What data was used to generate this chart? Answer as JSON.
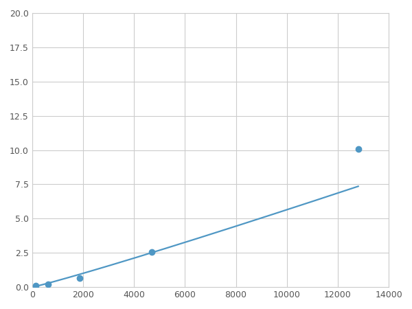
{
  "x": [
    156,
    625,
    1875,
    4688,
    12800
  ],
  "y": [
    0.1,
    0.2,
    0.65,
    2.55,
    10.1
  ],
  "line_color": "#4f97c4",
  "marker_color": "#4f97c4",
  "marker_size": 6,
  "xlim": [
    0,
    14000
  ],
  "ylim": [
    0,
    20
  ],
  "xticks": [
    0,
    2000,
    4000,
    6000,
    8000,
    10000,
    12000,
    14000
  ],
  "yticks": [
    0.0,
    2.5,
    5.0,
    7.5,
    10.0,
    12.5,
    15.0,
    17.5,
    20.0
  ],
  "grid_color": "#cccccc",
  "bg_color": "#ffffff",
  "linewidth": 1.6
}
